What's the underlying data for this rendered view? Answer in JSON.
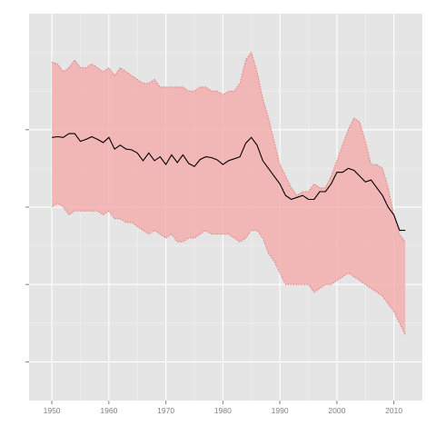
{
  "chart_data": {
    "type": "area",
    "title": "",
    "xlabel": "",
    "ylabel": "",
    "xlim": [
      1946,
      2015
    ],
    "ylim": [
      0,
      100
    ],
    "grid": true,
    "legend": "none",
    "x_ticks": [
      1950,
      1960,
      1970,
      1980,
      1990,
      2000,
      2010
    ],
    "y_ticks": [
      10,
      30,
      50,
      70
    ],
    "y_tick_labels_shown": false,
    "colors": {
      "panel_background": "#e5e5e5",
      "grid_major": "#ffffff",
      "grid_minor": "#f2f2f2",
      "band_fill": "#f4a6a6",
      "band_edge": "#e07a7a",
      "line": "#000000"
    },
    "series": [
      {
        "kind": "ribbon",
        "x": [
          1950,
          1951,
          1952,
          1953,
          1954,
          1955,
          1956,
          1957,
          1958,
          1959,
          1960,
          1961,
          1962,
          1963,
          1964,
          1965,
          1966,
          1967,
          1968,
          1969,
          1970,
          1971,
          1972,
          1973,
          1974,
          1975,
          1976,
          1977,
          1978,
          1979,
          1980,
          1981,
          1982,
          1983,
          1984,
          1985,
          1986,
          1987,
          1988,
          1989,
          1990,
          1991,
          1992,
          1993,
          1994,
          1995,
          1996,
          1997,
          1998,
          1999,
          2000,
          2001,
          2002,
          2003,
          2004,
          2005,
          2006,
          2007,
          2008,
          2009,
          2010,
          2011,
          2012
        ],
        "upper": [
          87.5,
          87,
          85,
          86,
          88,
          86,
          86,
          87,
          86,
          85,
          86,
          84,
          86,
          85,
          84,
          83,
          82,
          82,
          83,
          81,
          81,
          81,
          81,
          81,
          80,
          80,
          81,
          81,
          80,
          80,
          79,
          80,
          80,
          82,
          88,
          90,
          85,
          78,
          73,
          67,
          61,
          58,
          55,
          53,
          54,
          54,
          56,
          55,
          55,
          58,
          62,
          66,
          70,
          73,
          72,
          67,
          61,
          61,
          60,
          55,
          48,
          43,
          41
        ],
        "lower": [
          50,
          51,
          50,
          48,
          49,
          49,
          49,
          49,
          49,
          48,
          49,
          47,
          47,
          46,
          46,
          45,
          44,
          43,
          44,
          43,
          42,
          43,
          41,
          41,
          42,
          42,
          43,
          44,
          43,
          43,
          43,
          43,
          42,
          41,
          42,
          44,
          44,
          42,
          38,
          36,
          33,
          30,
          30,
          30,
          30,
          30,
          28,
          29,
          30,
          30,
          31,
          32,
          33,
          32,
          31,
          30,
          29,
          28,
          27,
          25,
          23,
          20,
          17
        ]
      },
      {
        "kind": "line",
        "x": [
          1950,
          1951,
          1952,
          1953,
          1954,
          1955,
          1956,
          1957,
          1958,
          1959,
          1960,
          1961,
          1962,
          1963,
          1964,
          1965,
          1966,
          1967,
          1968,
          1969,
          1970,
          1971,
          1972,
          1973,
          1974,
          1975,
          1976,
          1977,
          1978,
          1979,
          1980,
          1981,
          1982,
          1983,
          1984,
          1985,
          1986,
          1987,
          1988,
          1989,
          1990,
          1991,
          1992,
          1993,
          1994,
          1995,
          1996,
          1997,
          1998,
          1999,
          2000,
          2001,
          2002,
          2003,
          2004,
          2005,
          2006,
          2007,
          2008,
          2009,
          2010,
          2011,
          2012
        ],
        "y": [
          68,
          68.2,
          68,
          69,
          69,
          67,
          67.5,
          68.2,
          67.5,
          66.7,
          68,
          65,
          66,
          65,
          64.8,
          64,
          62,
          64,
          62,
          63,
          61,
          63.5,
          61.5,
          63.5,
          61.3,
          60.5,
          62.3,
          63,
          62.8,
          62.2,
          61,
          62,
          62.5,
          63,
          66.5,
          68,
          66,
          62,
          60,
          58,
          56,
          53,
          52,
          52.5,
          53,
          52,
          52,
          54,
          54,
          56,
          59,
          59,
          60,
          59.5,
          58,
          56.5,
          57,
          55,
          53,
          50,
          48,
          44,
          44
        ]
      }
    ]
  }
}
